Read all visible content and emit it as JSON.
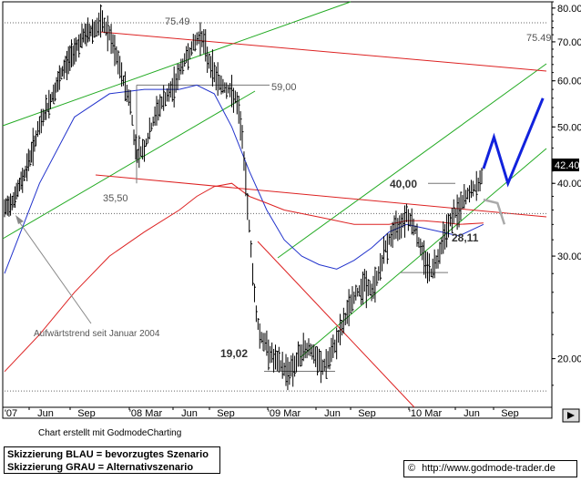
{
  "chart_data": {
    "type": "ohlc",
    "y_scale": "log",
    "ylim": [
      16.5,
      82
    ],
    "x_ticks": [
      "'07",
      "Jun",
      "Sep",
      "'08 Mar",
      "Jun",
      "Sep",
      "'09 Mar",
      "Jun",
      "Sep",
      "'10 Mar",
      "Jun",
      "Sep"
    ],
    "y_ticks": [
      "80.00",
      "70.00",
      "60.00",
      "50.00",
      "40.00",
      "30.00",
      "20.00"
    ],
    "last_price": "42.40",
    "levels": [
      {
        "label": "75.49",
        "value": 75.49
      },
      {
        "label": "75.49",
        "value": 75.49
      },
      {
        "label": "59,00",
        "value": 59.0
      },
      {
        "label": "35,50",
        "value": 35.5
      },
      {
        "label": "40,00",
        "value": 40.0
      },
      {
        "label": "28,11",
        "value": 28.11
      },
      {
        "label": "19,02",
        "value": 19.02
      }
    ],
    "annotations": [
      "Aufwärtstrend seit Januar 2004"
    ],
    "price_path": [
      [
        0,
        36
      ],
      [
        3,
        38
      ],
      [
        6,
        42
      ],
      [
        9,
        48
      ],
      [
        11,
        52
      ],
      [
        14,
        57
      ],
      [
        17,
        63
      ],
      [
        20,
        68
      ],
      [
        23,
        72
      ],
      [
        26,
        74
      ],
      [
        28,
        75.49
      ],
      [
        30,
        72
      ],
      [
        32,
        66
      ],
      [
        34,
        60
      ],
      [
        36,
        55
      ],
      [
        37,
        48
      ],
      [
        38,
        45
      ],
      [
        40,
        46
      ],
      [
        42,
        50
      ],
      [
        44,
        54
      ],
      [
        46,
        56
      ],
      [
        48,
        58
      ],
      [
        50,
        62
      ],
      [
        52,
        66
      ],
      [
        54,
        69
      ],
      [
        56,
        72
      ],
      [
        57,
        70
      ],
      [
        58,
        66
      ],
      [
        60,
        62
      ],
      [
        62,
        59
      ],
      [
        64,
        58
      ],
      [
        66,
        56
      ],
      [
        67,
        53
      ],
      [
        68,
        48
      ],
      [
        69,
        40
      ],
      [
        70,
        34
      ],
      [
        71,
        28
      ],
      [
        72,
        24
      ],
      [
        73,
        22
      ],
      [
        75,
        21
      ],
      [
        77,
        20
      ],
      [
        79,
        19.5
      ],
      [
        81,
        19.02
      ],
      [
        83,
        19.5
      ],
      [
        85,
        20.5
      ],
      [
        87,
        21
      ],
      [
        89,
        20
      ],
      [
        91,
        19.3
      ],
      [
        93,
        20
      ],
      [
        95,
        21.5
      ],
      [
        97,
        23
      ],
      [
        99,
        25
      ],
      [
        101,
        26
      ],
      [
        103,
        27
      ],
      [
        105,
        26
      ],
      [
        107,
        28
      ],
      [
        109,
        31
      ],
      [
        111,
        33
      ],
      [
        113,
        34
      ],
      [
        115,
        35.5
      ],
      [
        117,
        34
      ],
      [
        119,
        31
      ],
      [
        121,
        29
      ],
      [
        122,
        28.11
      ],
      [
        124,
        30
      ],
      [
        126,
        33
      ],
      [
        128,
        35
      ],
      [
        130,
        36
      ],
      [
        132,
        38
      ],
      [
        134,
        39
      ],
      [
        136,
        40
      ],
      [
        137,
        42.4
      ]
    ],
    "ma_blue": [
      [
        0,
        28
      ],
      [
        10,
        40
      ],
      [
        20,
        52
      ],
      [
        30,
        57
      ],
      [
        40,
        58
      ],
      [
        50,
        58
      ],
      [
        55,
        59
      ],
      [
        60,
        57
      ],
      [
        65,
        50
      ],
      [
        70,
        42
      ],
      [
        75,
        36
      ],
      [
        80,
        32
      ],
      [
        85,
        30
      ],
      [
        90,
        29
      ],
      [
        95,
        28.5
      ],
      [
        100,
        29.5
      ],
      [
        105,
        31
      ],
      [
        110,
        33
      ],
      [
        115,
        34
      ],
      [
        120,
        33.5
      ],
      [
        125,
        33
      ],
      [
        130,
        32.5
      ],
      [
        137,
        34
      ]
    ],
    "ma_red": [
      [
        0,
        19
      ],
      [
        10,
        22
      ],
      [
        20,
        26
      ],
      [
        30,
        30
      ],
      [
        40,
        33
      ],
      [
        50,
        36
      ],
      [
        55,
        38
      ],
      [
        60,
        39.5
      ],
      [
        65,
        40
      ],
      [
        70,
        38
      ],
      [
        75,
        37
      ],
      [
        80,
        36
      ],
      [
        85,
        35.5
      ],
      [
        90,
        35
      ],
      [
        95,
        34.5
      ],
      [
        100,
        34
      ],
      [
        105,
        34
      ],
      [
        110,
        34
      ],
      [
        115,
        34.5
      ],
      [
        120,
        34.5
      ],
      [
        125,
        34.3
      ],
      [
        130,
        34
      ],
      [
        137,
        34.2
      ]
    ],
    "scenario_blue": [
      [
        137,
        42.4
      ],
      [
        140,
        48
      ],
      [
        144,
        40
      ],
      [
        154,
        56
      ]
    ],
    "scenario_gray": [
      [
        137,
        37.5
      ],
      [
        141,
        37
      ],
      [
        143,
        34
      ]
    ]
  },
  "credit": "Chart erstellt mit GodmodeCharting",
  "legend": {
    "line1": "Skizzierung BLAU = bevorzugtes Szenario",
    "line2": "Skizzierung GRAU = Alternativszenario"
  },
  "source": {
    "copyright": "©",
    "url": "http://www.godmode-trader.de"
  }
}
